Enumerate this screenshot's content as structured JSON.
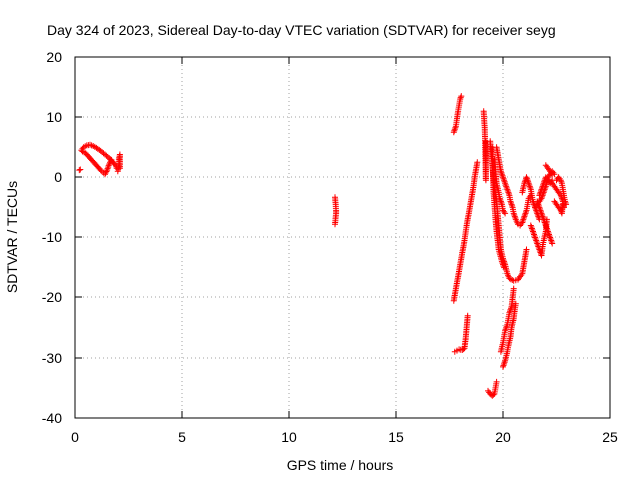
{
  "chart_data": {
    "type": "scatter",
    "title": "Day 324 of 2023, Sidereal Day-to-day VTEC variation (SDTVAR) for receiver seyg",
    "xlabel": "GPS time / hours",
    "ylabel": "SDTVAR / TECUs",
    "xlim": [
      0,
      25
    ],
    "ylim": [
      -40,
      20
    ],
    "xticks": [
      "0",
      "5",
      "10",
      "15",
      "20",
      "25"
    ],
    "yticks": [
      "20",
      "10",
      "0",
      "-10",
      "-20",
      "-30",
      "-40"
    ],
    "grid": true,
    "marker": "+",
    "color": "#ff0000",
    "series": [
      {
        "name": "SDTVAR",
        "segments": [
          [
            [
              0.2,
              1.2
            ],
            [
              0.25,
              1.3
            ]
          ],
          [
            [
              0.3,
              4.5
            ],
            [
              0.4,
              5.0
            ],
            [
              0.55,
              5.3
            ],
            [
              0.7,
              5.4
            ],
            [
              0.85,
              5.2
            ],
            [
              1.0,
              4.9
            ],
            [
              1.2,
              4.4
            ],
            [
              1.4,
              3.8
            ],
            [
              1.6,
              3.2
            ],
            [
              1.75,
              2.6
            ],
            [
              1.9,
              2.0
            ],
            [
              1.95,
              1.5
            ]
          ],
          [
            [
              0.35,
              4.3
            ],
            [
              0.5,
              4.0
            ],
            [
              0.65,
              3.4
            ],
            [
              0.8,
              2.8
            ],
            [
              0.95,
              2.2
            ],
            [
              1.1,
              1.6
            ],
            [
              1.25,
              1.0
            ],
            [
              1.4,
              0.5
            ],
            [
              1.5,
              1.2
            ],
            [
              1.6,
              2.2
            ],
            [
              1.7,
              2.9
            ]
          ],
          [
            [
              2.0,
              1.0
            ],
            [
              2.05,
              2.0
            ],
            [
              2.05,
              3.0
            ],
            [
              2.1,
              3.8
            ],
            [
              2.1,
              1.5
            ]
          ],
          [
            [
              12.15,
              -3.3
            ],
            [
              12.18,
              -4.5
            ],
            [
              12.2,
              -5.5
            ],
            [
              12.2,
              -6.0
            ],
            [
              12.15,
              -7.8
            ]
          ],
          [
            [
              17.7,
              7.5
            ],
            [
              17.8,
              8.5
            ],
            [
              17.85,
              9.8
            ],
            [
              17.9,
              11.0
            ],
            [
              17.95,
              12.0
            ],
            [
              18.0,
              13.0
            ],
            [
              18.05,
              13.5
            ]
          ],
          [
            [
              17.7,
              -20.5
            ],
            [
              17.8,
              -18.5
            ],
            [
              17.9,
              -16.5
            ],
            [
              18.0,
              -14.5
            ],
            [
              18.1,
              -12.5
            ],
            [
              18.2,
              -10.5
            ],
            [
              18.3,
              -8.0
            ],
            [
              18.4,
              -6.0
            ],
            [
              18.5,
              -4.0
            ],
            [
              18.6,
              -2.0
            ],
            [
              18.7,
              0.5
            ],
            [
              18.8,
              2.5
            ]
          ],
          [
            [
              17.75,
              -29.0
            ],
            [
              17.85,
              -28.8
            ],
            [
              17.95,
              -28.6
            ],
            [
              18.1,
              -28.7
            ],
            [
              18.2,
              -28.4
            ],
            [
              18.25,
              -27.0
            ],
            [
              18.3,
              -25.0
            ],
            [
              18.35,
              -23.0
            ]
          ],
          [
            [
              19.1,
              11.0
            ],
            [
              19.12,
              9.5
            ],
            [
              19.15,
              8.0
            ],
            [
              19.2,
              -0.5
            ],
            [
              19.2,
              6.0
            ]
          ],
          [
            [
              19.3,
              -35.5
            ],
            [
              19.4,
              -36.0
            ],
            [
              19.5,
              -36.3
            ],
            [
              19.6,
              -36.0
            ],
            [
              19.65,
              -35.0
            ],
            [
              19.7,
              -34.0
            ]
          ],
          [
            [
              19.4,
              6.0
            ],
            [
              19.45,
              4.0
            ],
            [
              19.5,
              2.0
            ],
            [
              19.55,
              0.0
            ],
            [
              19.6,
              -2.0
            ],
            [
              19.7,
              -4.0
            ],
            [
              19.75,
              -6.0
            ],
            [
              19.8,
              -8.0
            ],
            [
              19.85,
              -10.0
            ],
            [
              19.9,
              -12.0
            ],
            [
              20.0,
              -13.5
            ],
            [
              20.1,
              -14.5
            ],
            [
              20.2,
              -16.0
            ],
            [
              20.3,
              -16.8
            ],
            [
              20.5,
              -17.2
            ],
            [
              20.7,
              -17.0
            ],
            [
              20.9,
              -16.0
            ],
            [
              21.0,
              -14.0
            ],
            [
              21.1,
              -12.0
            ]
          ],
          [
            [
              19.5,
              5.0
            ],
            [
              19.55,
              -2.0
            ],
            [
              19.6,
              -4.5
            ],
            [
              19.65,
              -7.0
            ],
            [
              19.7,
              -9.0
            ],
            [
              19.8,
              -12.0
            ],
            [
              19.95,
              -14.0
            ],
            [
              20.05,
              -15.0
            ]
          ],
          [
            [
              19.6,
              3.0
            ],
            [
              19.65,
              1.0
            ],
            [
              19.7,
              -1.0
            ],
            [
              19.8,
              -2.5
            ],
            [
              19.85,
              -3.5
            ],
            [
              19.95,
              -4.5
            ],
            [
              20.0,
              -5.5
            ],
            [
              20.1,
              -6.0
            ]
          ],
          [
            [
              19.7,
              5.0
            ],
            [
              19.8,
              3.0
            ],
            [
              19.9,
              1.0
            ],
            [
              20.0,
              0.0
            ],
            [
              20.1,
              -1.0
            ],
            [
              20.2,
              -2.0
            ],
            [
              20.3,
              -3.0
            ],
            [
              20.35,
              -4.0
            ],
            [
              20.45,
              -5.0
            ],
            [
              20.5,
              -6.0
            ],
            [
              20.6,
              -7.0
            ],
            [
              20.7,
              -7.8
            ],
            [
              20.8,
              -8.0
            ],
            [
              20.9,
              -7.5
            ],
            [
              21.0,
              -6.5
            ],
            [
              21.1,
              -5.5
            ],
            [
              21.15,
              -4.5
            ],
            [
              21.2,
              -3.5
            ],
            [
              21.3,
              -3.0
            ]
          ],
          [
            [
              19.9,
              -29.0
            ],
            [
              20.0,
              -27.5
            ],
            [
              20.05,
              -26.5
            ],
            [
              20.1,
              -25.5
            ],
            [
              20.2,
              -24.5
            ],
            [
              20.25,
              -23.5
            ],
            [
              20.3,
              -22.5
            ],
            [
              20.4,
              -21.5
            ],
            [
              20.45,
              -20.0
            ],
            [
              20.5,
              -18.5
            ]
          ],
          [
            [
              20.0,
              -31.5
            ],
            [
              20.1,
              -30.5
            ],
            [
              20.2,
              -29.0
            ],
            [
              20.25,
              -28.0
            ],
            [
              20.35,
              -26.5
            ],
            [
              20.4,
              -25.0
            ],
            [
              20.5,
              -23.5
            ],
            [
              20.55,
              -22.0
            ],
            [
              20.6,
              -21.0
            ]
          ],
          [
            [
              20.9,
              -2.5
            ],
            [
              21.0,
              -1.0
            ],
            [
              21.1,
              0.0
            ],
            [
              21.2,
              -1.0
            ],
            [
              21.3,
              -2.0
            ],
            [
              21.35,
              -3.0
            ],
            [
              21.4,
              -4.0
            ],
            [
              21.5,
              -5.0
            ],
            [
              21.6,
              -6.0
            ],
            [
              21.7,
              -7.0
            ]
          ],
          [
            [
              21.3,
              -8.0
            ],
            [
              21.4,
              -9.0
            ],
            [
              21.5,
              -10.0
            ],
            [
              21.6,
              -11.0
            ],
            [
              21.7,
              -12.0
            ],
            [
              21.8,
              -13.0
            ],
            [
              21.85,
              -11.5
            ],
            [
              21.9,
              -10.5
            ],
            [
              22.0,
              -9.0
            ],
            [
              22.05,
              -7.0
            ]
          ],
          [
            [
              21.7,
              -3.0
            ],
            [
              21.8,
              -2.0
            ],
            [
              21.9,
              -1.0
            ],
            [
              22.0,
              0.0
            ],
            [
              22.1,
              -0.5
            ],
            [
              22.2,
              -1.0
            ],
            [
              22.3,
              -0.5
            ]
          ],
          [
            [
              21.6,
              -4.0
            ],
            [
              21.7,
              -5.0
            ],
            [
              21.8,
              -6.0
            ],
            [
              21.9,
              -7.0
            ],
            [
              22.0,
              -8.0
            ],
            [
              22.1,
              -9.0
            ],
            [
              22.2,
              -10.0
            ],
            [
              22.3,
              -11.0
            ]
          ],
          [
            [
              21.5,
              -5.0
            ],
            [
              21.6,
              -4.5
            ],
            [
              21.7,
              -4.0
            ],
            [
              21.8,
              -3.5
            ],
            [
              21.9,
              -2.5
            ],
            [
              22.0,
              -1.5
            ],
            [
              22.1,
              0.0
            ],
            [
              22.2,
              0.5
            ],
            [
              22.3,
              1.0
            ],
            [
              22.4,
              0.5
            ]
          ],
          [
            [
              22.0,
              2.0
            ],
            [
              22.1,
              1.5
            ],
            [
              22.2,
              1.0
            ],
            [
              22.3,
              0.5
            ]
          ],
          [
            [
              22.3,
              -1.0
            ],
            [
              22.4,
              -1.5
            ],
            [
              22.5,
              -2.0
            ],
            [
              22.6,
              -2.5
            ],
            [
              22.7,
              -3.0
            ],
            [
              22.75,
              -3.5
            ],
            [
              22.8,
              -4.0
            ],
            [
              22.85,
              -5.0
            ]
          ],
          [
            [
              22.4,
              -4.0
            ],
            [
              22.5,
              -4.5
            ],
            [
              22.6,
              -5.0
            ],
            [
              22.7,
              -5.5
            ],
            [
              22.75,
              -6.0
            ],
            [
              22.8,
              -4.5
            ]
          ],
          [
            [
              22.5,
              -0.5
            ],
            [
              22.6,
              0.0
            ],
            [
              22.7,
              -0.5
            ],
            [
              22.75,
              -1.0
            ],
            [
              22.8,
              -2.0
            ],
            [
              22.85,
              -3.0
            ],
            [
              22.9,
              -4.0
            ],
            [
              22.95,
              -4.5
            ]
          ]
        ]
      }
    ]
  }
}
